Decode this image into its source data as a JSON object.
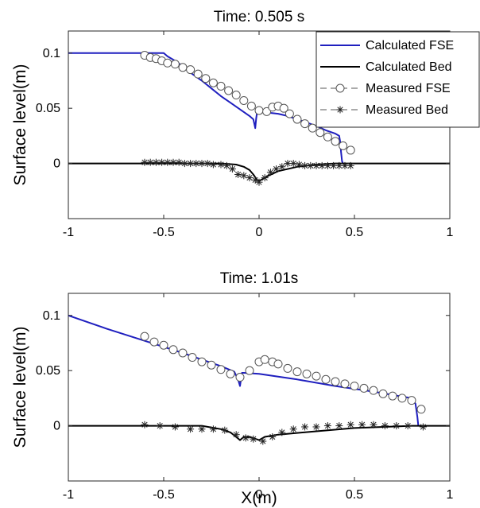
{
  "chart_data": [
    {
      "type": "line",
      "title": "Time: 0.505 s",
      "xlabel": "",
      "ylabel": "Surface level(m)",
      "xlim": [
        -1,
        1
      ],
      "ylim": [
        -0.05,
        0.12
      ],
      "xticks": [
        -1,
        -0.5,
        0,
        0.5,
        1
      ],
      "xtick_labels": [
        "-1",
        "-0.5",
        "0",
        "0.5",
        "1"
      ],
      "yticks": [
        0,
        0.05,
        0.1
      ],
      "ytick_labels": [
        "0",
        "0.05",
        "0.1"
      ],
      "legend": {
        "placement": "top-right",
        "entries": [
          "Calculated FSE",
          "Calculated Bed",
          "Measured FSE",
          "Measured Bed"
        ]
      },
      "series": [
        {
          "name": "Calculated FSE",
          "style": "line",
          "color": "#1f1fbf",
          "x": [
            -1,
            -0.5,
            -0.48,
            -0.44,
            -0.4,
            -0.35,
            -0.3,
            -0.25,
            -0.2,
            -0.15,
            -0.1,
            -0.05,
            -0.03,
            -0.02,
            -0.015,
            -0.01,
            0.0,
            0.05,
            0.1,
            0.15,
            0.2,
            0.25,
            0.3,
            0.35,
            0.4,
            0.42,
            0.425,
            0.43,
            0.435,
            0.44
          ],
          "y": [
            0.1,
            0.1,
            0.097,
            0.093,
            0.088,
            0.081,
            0.075,
            0.068,
            0.061,
            0.055,
            0.049,
            0.043,
            0.04,
            0.032,
            0.041,
            0.047,
            0.047,
            0.046,
            0.045,
            0.043,
            0.04,
            0.037,
            0.034,
            0.03,
            0.027,
            0.025,
            0.02,
            0.01,
            0.002,
            0.0
          ]
        },
        {
          "name": "Calculated Bed",
          "style": "line",
          "color": "#000000",
          "x": [
            -1,
            -0.2,
            -0.12,
            -0.08,
            -0.05,
            -0.03,
            -0.01,
            0.0,
            0.02,
            0.05,
            0.1,
            0.2,
            0.3,
            0.4,
            0.45,
            1
          ],
          "y": [
            0.0,
            0.0,
            -0.001,
            -0.003,
            -0.006,
            -0.01,
            -0.015,
            -0.016,
            -0.014,
            -0.011,
            -0.007,
            -0.003,
            -0.001,
            0.0,
            0.0,
            0.0
          ]
        },
        {
          "name": "Measured FSE",
          "style": "marker-circle",
          "color": "#000000",
          "x": [
            -0.6,
            -0.57,
            -0.54,
            -0.51,
            -0.48,
            -0.44,
            -0.4,
            -0.36,
            -0.32,
            -0.28,
            -0.24,
            -0.2,
            -0.16,
            -0.12,
            -0.08,
            -0.04,
            0.0,
            0.04,
            0.07,
            0.1,
            0.13,
            0.16,
            0.2,
            0.24,
            0.28,
            0.32,
            0.36,
            0.4,
            0.44,
            0.48
          ],
          "y": [
            0.098,
            0.096,
            0.095,
            0.093,
            0.091,
            0.09,
            0.087,
            0.085,
            0.081,
            0.077,
            0.073,
            0.07,
            0.066,
            0.062,
            0.057,
            0.052,
            0.048,
            0.047,
            0.051,
            0.052,
            0.05,
            0.045,
            0.04,
            0.036,
            0.032,
            0.028,
            0.024,
            0.02,
            0.016,
            0.012
          ]
        },
        {
          "name": "Measured Bed",
          "style": "marker-star",
          "color": "#000000",
          "x": [
            -0.6,
            -0.57,
            -0.54,
            -0.51,
            -0.48,
            -0.45,
            -0.42,
            -0.39,
            -0.36,
            -0.33,
            -0.3,
            -0.27,
            -0.24,
            -0.2,
            -0.17,
            -0.14,
            -0.11,
            -0.08,
            -0.05,
            -0.02,
            0.0,
            0.03,
            0.06,
            0.09,
            0.12,
            0.15,
            0.18,
            0.21,
            0.24,
            0.27,
            0.3,
            0.33,
            0.36,
            0.39,
            0.42,
            0.45,
            0.48
          ],
          "y": [
            0.001,
            0.001,
            0.001,
            0.001,
            0.001,
            0.001,
            0.001,
            0.0,
            0.0,
            0.0,
            0.0,
            0.0,
            -0.001,
            -0.001,
            -0.002,
            -0.005,
            -0.01,
            -0.011,
            -0.013,
            -0.015,
            -0.017,
            -0.013,
            -0.008,
            -0.005,
            -0.003,
            0.0,
            0.0,
            -0.001,
            -0.002,
            -0.002,
            -0.002,
            -0.002,
            -0.002,
            -0.002,
            -0.002,
            -0.002,
            -0.002
          ]
        }
      ]
    },
    {
      "type": "line",
      "title": "Time: 1.01s",
      "xlabel": "X(m)",
      "ylabel": "Surface level(m)",
      "xlim": [
        -1,
        1
      ],
      "ylim": [
        -0.05,
        0.12
      ],
      "xticks": [
        -1,
        -0.5,
        0,
        0.5,
        1
      ],
      "xtick_labels": [
        "-1",
        "-0.5",
        "0",
        "0.5",
        "1"
      ],
      "yticks": [
        0,
        0.05,
        0.1
      ],
      "ytick_labels": [
        "0",
        "0.05",
        "0.1"
      ],
      "series": [
        {
          "name": "Calculated FSE",
          "style": "line",
          "color": "#1f1fbf",
          "x": [
            -1,
            -0.8,
            -0.6,
            -0.4,
            -0.2,
            -0.13,
            -0.11,
            -0.1,
            -0.09,
            -0.08,
            0.0,
            0.2,
            0.4,
            0.6,
            0.8,
            0.82,
            0.83,
            0.835
          ],
          "y": [
            0.1,
            0.088,
            0.077,
            0.066,
            0.054,
            0.049,
            0.042,
            0.036,
            0.048,
            0.048,
            0.047,
            0.042,
            0.036,
            0.031,
            0.025,
            0.02,
            0.008,
            0.0
          ]
        },
        {
          "name": "Calculated Bed",
          "style": "line",
          "color": "#000000",
          "x": [
            -1,
            -0.3,
            -0.2,
            -0.15,
            -0.12,
            -0.1,
            -0.08,
            -0.05,
            0.0,
            0.03,
            0.1,
            0.3,
            0.5,
            0.8,
            0.85,
            1
          ],
          "y": [
            0.0,
            0.0,
            -0.003,
            -0.006,
            -0.01,
            -0.013,
            -0.01,
            -0.01,
            -0.013,
            -0.01,
            -0.008,
            -0.005,
            -0.002,
            0.0,
            0.0,
            0.0
          ]
        },
        {
          "name": "Measured FSE",
          "style": "marker-circle",
          "color": "#000000",
          "x": [
            -0.6,
            -0.55,
            -0.5,
            -0.45,
            -0.4,
            -0.35,
            -0.3,
            -0.25,
            -0.2,
            -0.15,
            -0.1,
            -0.05,
            0.0,
            0.03,
            0.07,
            0.1,
            0.15,
            0.2,
            0.25,
            0.3,
            0.35,
            0.4,
            0.45,
            0.5,
            0.55,
            0.6,
            0.65,
            0.7,
            0.75,
            0.8,
            0.85
          ],
          "y": [
            0.081,
            0.076,
            0.073,
            0.069,
            0.066,
            0.062,
            0.058,
            0.055,
            0.051,
            0.047,
            0.044,
            0.05,
            0.058,
            0.06,
            0.058,
            0.056,
            0.052,
            0.049,
            0.047,
            0.045,
            0.042,
            0.04,
            0.038,
            0.036,
            0.034,
            0.032,
            0.029,
            0.027,
            0.025,
            0.023,
            0.015
          ]
        },
        {
          "name": "Measured Bed",
          "style": "marker-star",
          "color": "#000000",
          "x": [
            -0.6,
            -0.52,
            -0.44,
            -0.36,
            -0.3,
            -0.24,
            -0.18,
            -0.12,
            -0.07,
            -0.03,
            0.02,
            0.07,
            0.12,
            0.18,
            0.24,
            0.3,
            0.36,
            0.42,
            0.48,
            0.54,
            0.6,
            0.66,
            0.72,
            0.78,
            0.86
          ],
          "y": [
            0.001,
            0.0,
            -0.001,
            -0.003,
            -0.003,
            -0.003,
            -0.004,
            -0.008,
            -0.011,
            -0.012,
            -0.014,
            -0.01,
            -0.006,
            -0.003,
            -0.001,
            -0.001,
            0.0,
            0.0,
            0.001,
            0.001,
            0.001,
            0.0,
            0.0,
            0.0,
            -0.001
          ]
        }
      ]
    }
  ]
}
